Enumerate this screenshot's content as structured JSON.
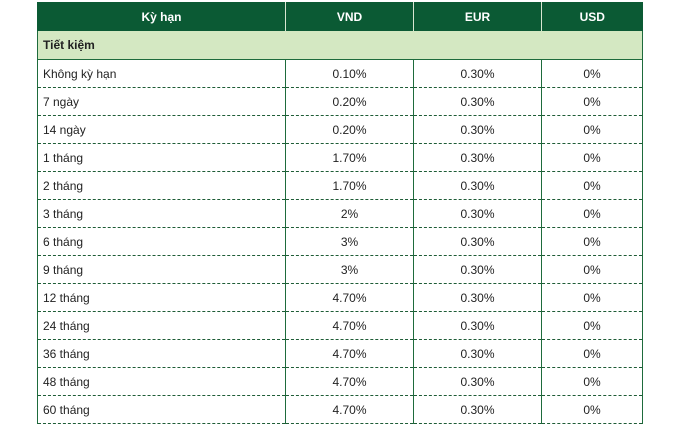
{
  "table": {
    "columns": [
      "Kỳ hạn",
      "VND",
      "EUR",
      "USD"
    ],
    "section": "Tiết kiệm",
    "rows": [
      [
        "Không kỳ hạn",
        "0.10%",
        "0.30%",
        "0%"
      ],
      [
        "7 ngày",
        "0.20%",
        "0.30%",
        "0%"
      ],
      [
        "14 ngày",
        "0.20%",
        "0.30%",
        "0%"
      ],
      [
        "1 tháng",
        "1.70%",
        "0.30%",
        "0%"
      ],
      [
        "2 tháng",
        "1.70%",
        "0.30%",
        "0%"
      ],
      [
        "3 tháng",
        "2%",
        "0.30%",
        "0%"
      ],
      [
        "6 tháng",
        "3%",
        "0.30%",
        "0%"
      ],
      [
        "9 tháng",
        "3%",
        "0.30%",
        "0%"
      ],
      [
        "12 tháng",
        "4.70%",
        "0.30%",
        "0%"
      ],
      [
        "24 tháng",
        "4.70%",
        "0.30%",
        "0%"
      ],
      [
        "36 tháng",
        "4.70%",
        "0.30%",
        "0%"
      ],
      [
        "48 tháng",
        "4.70%",
        "0.30%",
        "0%"
      ],
      [
        "60 tháng",
        "4.70%",
        "0.30%",
        "0%"
      ]
    ]
  }
}
